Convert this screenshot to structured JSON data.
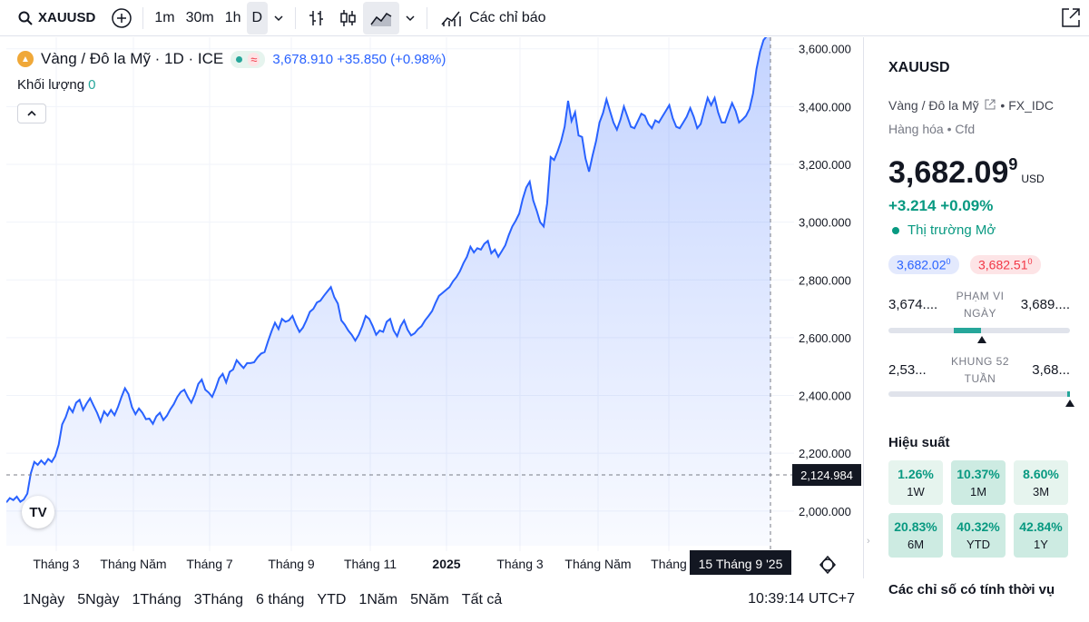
{
  "toolbar": {
    "symbol": "XAUUSD",
    "intervals": [
      "1m",
      "30m",
      "1h",
      "D"
    ],
    "active_interval": "D",
    "indicators_label": "Các chỉ báo"
  },
  "legend": {
    "title": "Vàng / Đô la Mỹ · 1D · ICE",
    "quote": "3,678.910 +35.850 (+0.98%)",
    "volume_label": "Khối lượng",
    "volume_value": "0"
  },
  "chart_data": {
    "type": "area",
    "x_ticks": [
      "Tháng 3",
      "Tháng Năm",
      "Tháng 7",
      "Tháng 9",
      "Tháng 11",
      "2025",
      "Tháng 3",
      "Tháng Năm",
      "Tháng"
    ],
    "y_ticks": [
      "3,600.000",
      "3,400.000",
      "3,200.000",
      "3,000.000",
      "2,800.000",
      "2,600.000",
      "2,400.000",
      "2,200.000",
      "2,000.000"
    ],
    "ylim": [
      1880,
      3640
    ],
    "crosshair_price": "2,124.984",
    "crosshair_date": "15 Tháng 9 '25",
    "series": [
      {
        "values": [
          2030,
          2045,
          2038,
          2050,
          2032,
          2040,
          2060,
          2130,
          2170,
          2160,
          2175,
          2162,
          2180,
          2170,
          2190,
          2230,
          2300,
          2325,
          2360,
          2342,
          2375,
          2385,
          2350,
          2372,
          2390,
          2365,
          2340,
          2310,
          2345,
          2330,
          2350,
          2332,
          2360,
          2395,
          2425,
          2405,
          2360,
          2335,
          2355,
          2340,
          2318,
          2320,
          2302,
          2328,
          2340,
          2315,
          2330,
          2352,
          2370,
          2395,
          2412,
          2420,
          2395,
          2375,
          2402,
          2440,
          2455,
          2420,
          2410,
          2395,
          2425,
          2460,
          2475,
          2445,
          2482,
          2490,
          2522,
          2508,
          2495,
          2512,
          2512,
          2515,
          2532,
          2545,
          2550,
          2588,
          2622,
          2652,
          2630,
          2665,
          2655,
          2660,
          2675,
          2645,
          2620,
          2635,
          2660,
          2690,
          2700,
          2722,
          2728,
          2745,
          2760,
          2775,
          2740,
          2718,
          2660,
          2645,
          2625,
          2610,
          2590,
          2610,
          2640,
          2675,
          2665,
          2640,
          2610,
          2625,
          2620,
          2655,
          2665,
          2625,
          2605,
          2640,
          2660,
          2628,
          2608,
          2615,
          2630,
          2640,
          2660,
          2675,
          2692,
          2720,
          2745,
          2755,
          2765,
          2775,
          2795,
          2810,
          2830,
          2858,
          2880,
          2915,
          2895,
          2910,
          2905,
          2925,
          2935,
          2892,
          2905,
          2880,
          2900,
          2920,
          2955,
          2985,
          3005,
          3030,
          3080,
          3120,
          3140,
          3075,
          3040,
          3000,
          2985,
          3065,
          3225,
          3215,
          3245,
          3280,
          3330,
          3420,
          3350,
          3380,
          3300,
          3295,
          3220,
          3175,
          3230,
          3280,
          3345,
          3378,
          3425,
          3385,
          3345,
          3320,
          3355,
          3400,
          3365,
          3330,
          3325,
          3350,
          3375,
          3368,
          3340,
          3325,
          3352,
          3345,
          3365,
          3385,
          3405,
          3360,
          3330,
          3325,
          3345,
          3365,
          3395,
          3365,
          3325,
          3340,
          3385,
          3430,
          3405,
          3430,
          3380,
          3345,
          3345,
          3380,
          3412,
          3385,
          3345,
          3355,
          3368,
          3392,
          3445,
          3530,
          3590,
          3630,
          3645,
          3655
        ]
      }
    ]
  },
  "bottom": {
    "ranges": [
      "1Ngày",
      "5Ngày",
      "1Tháng",
      "3Tháng",
      "6 tháng",
      "YTD",
      "1Năm",
      "5Năm",
      "Tất cả"
    ],
    "clock": "10:39:14 UTC+7"
  },
  "side": {
    "symbol": "XAUUSD",
    "name": "Vàng / Đô la Mỹ",
    "source": "FX_IDC",
    "category": "Hàng hóa • Cfd",
    "price_main": "3,682.09",
    "price_sup": "9",
    "currency": "USD",
    "change": "+3.214  +0.09%",
    "market": "Thị trường Mở",
    "bid": "3,682.02",
    "bid_sup": "0",
    "ask": "3,682.51",
    "ask_sup": "0",
    "day_low": "3,674....",
    "day_high": "3,689....",
    "day_label": "PHẠM VI NGÀY",
    "day_fill": 0.5,
    "w52_low": "2,53...",
    "w52_high": "3,68...",
    "w52_label": "KHUNG 52 TUẦN",
    "w52_fill": 1.0,
    "perf_title": "Hiệu suất",
    "perf": [
      {
        "value": "1.26%",
        "label": "1W"
      },
      {
        "value": "10.37%",
        "label": "1M"
      },
      {
        "value": "8.60%",
        "label": "3M"
      },
      {
        "value": "20.83%",
        "label": "6M"
      },
      {
        "value": "40.32%",
        "label": "YTD"
      },
      {
        "value": "42.84%",
        "label": "1Y"
      }
    ],
    "season_title": "Các chỉ số có tính thời vụ"
  },
  "colors": {
    "line": "#2962ff",
    "positive": "#089981",
    "negative": "#f23645"
  }
}
